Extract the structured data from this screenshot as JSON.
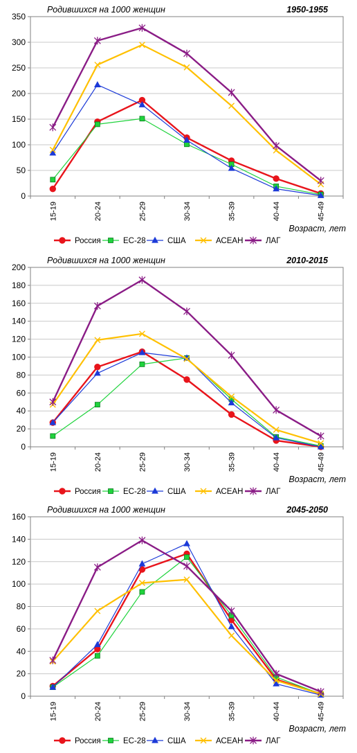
{
  "colors": {
    "russia": "#e8141b",
    "eu28": "#1fd33c",
    "usa": "#1c3ad8",
    "asean": "#ffc000",
    "lag": "#8a1c86",
    "grid": "#c8c8c8",
    "axis": "#808080"
  },
  "chart_data": [
    {
      "type": "line",
      "title": "1950-1955",
      "subtitle": "Родившихся на 1000  женщин",
      "xlabel": "Возраст, лет",
      "ylabel": "",
      "categories": [
        "15-19",
        "20-24",
        "25-29",
        "30-34",
        "35-39",
        "40-44",
        "45-49"
      ],
      "ylim": [
        0,
        350
      ],
      "yticks": [
        0,
        50,
        100,
        150,
        200,
        250,
        300,
        350
      ],
      "grid": true,
      "legend": "bottom",
      "series": [
        {
          "name": "Россия",
          "marker": "circle",
          "color": "#e8141b",
          "values": [
            14,
            145,
            187,
            114,
            69,
            34,
            5
          ]
        },
        {
          "name": "ЕС-28",
          "marker": "square",
          "color": "#1fd33c",
          "values": [
            32,
            140,
            151,
            101,
            62,
            19,
            3
          ]
        },
        {
          "name": "США",
          "marker": "triangle",
          "color": "#1c3ad8",
          "values": [
            84,
            217,
            178,
            109,
            54,
            14,
            1
          ]
        },
        {
          "name": "АСЕАН",
          "marker": "x",
          "color": "#ffc000",
          "values": [
            90,
            256,
            295,
            251,
            176,
            89,
            23
          ]
        },
        {
          "name": "ЛАГ",
          "marker": "star",
          "color": "#8a1c86",
          "values": [
            134,
            303,
            328,
            278,
            202,
            98,
            30
          ]
        }
      ]
    },
    {
      "type": "line",
      "title": "2010-2015",
      "subtitle": "Родившихся на 1000  женщин",
      "xlabel": "Возраст, лет",
      "ylabel": "",
      "categories": [
        "15-19",
        "20-24",
        "25-29",
        "30-34",
        "35-39",
        "40-44",
        "45-49"
      ],
      "ylim": [
        0,
        200
      ],
      "yticks": [
        0,
        20,
        40,
        60,
        80,
        100,
        120,
        140,
        160,
        180,
        200
      ],
      "grid": true,
      "legend": "bottom",
      "series": [
        {
          "name": "Россия",
          "marker": "circle",
          "color": "#e8141b",
          "values": [
            27,
            89,
            106,
            75,
            36,
            7,
            0
          ]
        },
        {
          "name": "ЕС-28",
          "marker": "square",
          "color": "#1fd33c",
          "values": [
            12,
            47,
            92,
            99,
            53,
            11,
            1
          ]
        },
        {
          "name": "США",
          "marker": "triangle",
          "color": "#1c3ad8",
          "values": [
            27,
            82,
            105,
            99,
            49,
            10,
            0
          ]
        },
        {
          "name": "АСЕАН",
          "marker": "x",
          "color": "#ffc000",
          "values": [
            47,
            119,
            126,
            98,
            56,
            19,
            4
          ]
        },
        {
          "name": "ЛАГ",
          "marker": "star",
          "color": "#8a1c86",
          "values": [
            50,
            157,
            186,
            151,
            102,
            41,
            12
          ]
        }
      ]
    },
    {
      "type": "line",
      "title": "2045-2050",
      "subtitle": "Родившихся на 1000  женщин",
      "xlabel": "Возраст, лет",
      "ylabel": "",
      "categories": [
        "15-19",
        "20-24",
        "25-29",
        "30-34",
        "35-39",
        "40-44",
        "45-49"
      ],
      "ylim": [
        0,
        160
      ],
      "yticks": [
        0,
        20,
        40,
        60,
        80,
        100,
        120,
        140,
        160
      ],
      "grid": true,
      "legend": "bottom",
      "series": [
        {
          "name": "Россия",
          "marker": "circle",
          "color": "#e8141b",
          "values": [
            9,
            42,
            113,
            127,
            68,
            15,
            2
          ]
        },
        {
          "name": "ЕС-28",
          "marker": "square",
          "color": "#1fd33c",
          "values": [
            8,
            36,
            93,
            124,
            72,
            17,
            2
          ]
        },
        {
          "name": "США",
          "marker": "triangle",
          "color": "#1c3ad8",
          "values": [
            8,
            46,
            118,
            136,
            62,
            11,
            1
          ]
        },
        {
          "name": "АСЕАН",
          "marker": "x",
          "color": "#ffc000",
          "values": [
            31,
            76,
            101,
            104,
            54,
            14,
            2
          ]
        },
        {
          "name": "ЛАГ",
          "marker": "star",
          "color": "#8a1c86",
          "values": [
            32,
            115,
            139,
            116,
            76,
            20,
            4
          ]
        }
      ]
    }
  ]
}
